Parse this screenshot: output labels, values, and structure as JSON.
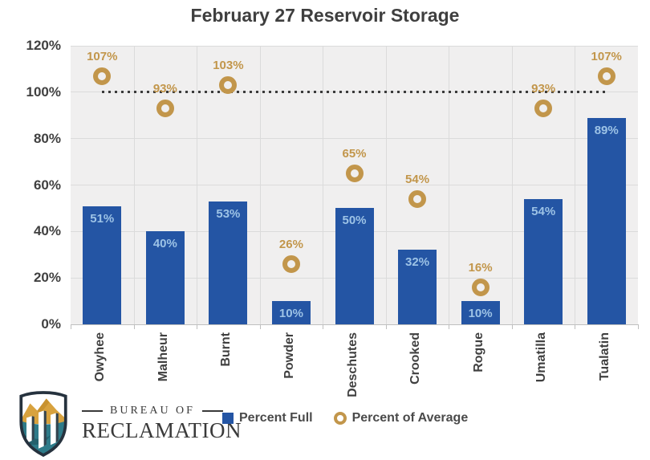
{
  "title": "February 27 Reservoir Storage",
  "y_axis": {
    "ticks": [
      "120%",
      "100%",
      "80%",
      "60%",
      "40%",
      "20%",
      "0%"
    ],
    "max": 120,
    "step": 20
  },
  "reference_line": {
    "value": 100,
    "style": "dotted"
  },
  "chart_data": {
    "type": "bar",
    "title": "February 27 Reservoir Storage",
    "categories": [
      "Owyhee",
      "Malheur",
      "Burnt",
      "Powder",
      "Deschutes",
      "Crooked",
      "Rogue",
      "Umatilla",
      "Tualatin"
    ],
    "series": [
      {
        "name": "Percent Full",
        "type": "bar",
        "values": [
          51,
          40,
          53,
          10,
          50,
          32,
          10,
          54,
          89
        ],
        "color": "#2455a4",
        "label_color": "#9dc3e6",
        "label_suffix": "%"
      },
      {
        "name": "Percent of Average",
        "type": "scatter",
        "marker": "ring",
        "values": [
          107,
          93,
          103,
          26,
          65,
          54,
          16,
          93,
          107
        ],
        "color": "#c2964b",
        "label_color": "#c2964b",
        "label_suffix": "%"
      }
    ],
    "xlabel": "",
    "ylabel": "",
    "ylim": [
      0,
      120
    ],
    "grid": true,
    "plot_background": "#f0efef",
    "legend_position": "bottom"
  },
  "legend": {
    "items": [
      {
        "label": "Percent Full",
        "marker": "square",
        "color": "#2455a4"
      },
      {
        "label": "Percent of Average",
        "marker": "ring",
        "color": "#c2964b"
      }
    ]
  },
  "logo": {
    "line1": "BUREAU OF",
    "line2": "RECLAMATION"
  }
}
